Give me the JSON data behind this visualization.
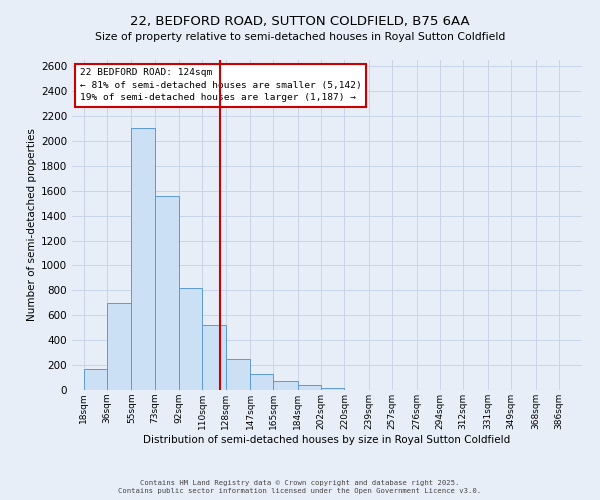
{
  "title": "22, BEDFORD ROAD, SUTTON COLDFIELD, B75 6AA",
  "subtitle": "Size of property relative to semi-detached houses in Royal Sutton Coldfield",
  "xlabel": "Distribution of semi-detached houses by size in Royal Sutton Coldfield",
  "ylabel": "Number of semi-detached properties",
  "bar_left_edges": [
    18,
    36,
    55,
    73,
    92,
    110,
    128,
    147,
    165,
    184,
    202,
    220,
    239,
    257,
    276,
    294,
    312,
    331,
    349,
    368
  ],
  "bar_widths": [
    18,
    19,
    18,
    19,
    18,
    18,
    19,
    18,
    19,
    18,
    18,
    19,
    18,
    19,
    18,
    18,
    19,
    18,
    19,
    18
  ],
  "bar_heights": [
    170,
    700,
    2100,
    1560,
    820,
    520,
    250,
    130,
    70,
    40,
    20,
    0,
    0,
    0,
    0,
    0,
    0,
    0,
    0,
    0
  ],
  "bar_color": "#cce0f5",
  "bar_edge_color": "#5b9bd5",
  "property_size": 124,
  "vline_color": "#cc0000",
  "annotation_title": "22 BEDFORD ROAD: 124sqm",
  "annotation_line1": "← 81% of semi-detached houses are smaller (5,142)",
  "annotation_line2": "19% of semi-detached houses are larger (1,187) →",
  "annotation_box_color": "#ffffff",
  "annotation_box_edge_color": "#cc0000",
  "ylim": [
    0,
    2650
  ],
  "yticks": [
    0,
    200,
    400,
    600,
    800,
    1000,
    1200,
    1400,
    1600,
    1800,
    2000,
    2200,
    2400,
    2600
  ],
  "xtick_labels": [
    "18sqm",
    "36sqm",
    "55sqm",
    "73sqm",
    "92sqm",
    "110sqm",
    "128sqm",
    "147sqm",
    "165sqm",
    "184sqm",
    "202sqm",
    "220sqm",
    "239sqm",
    "257sqm",
    "276sqm",
    "294sqm",
    "312sqm",
    "331sqm",
    "349sqm",
    "368sqm",
    "386sqm"
  ],
  "xtick_positions": [
    18,
    36,
    55,
    73,
    92,
    110,
    128,
    147,
    165,
    184,
    202,
    220,
    239,
    257,
    276,
    294,
    312,
    331,
    349,
    368,
    386
  ],
  "grid_color": "#c8d4e8",
  "bg_color": "#e8eef8",
  "footer1": "Contains HM Land Registry data © Crown copyright and database right 2025.",
  "footer2": "Contains public sector information licensed under the Open Government Licence v3.0."
}
